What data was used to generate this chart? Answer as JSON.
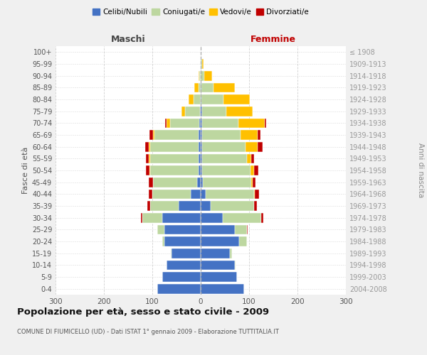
{
  "age_groups": [
    "0-4",
    "5-9",
    "10-14",
    "15-19",
    "20-24",
    "25-29",
    "30-34",
    "35-39",
    "40-44",
    "45-49",
    "50-54",
    "55-59",
    "60-64",
    "65-69",
    "70-74",
    "75-79",
    "80-84",
    "85-89",
    "90-94",
    "95-99",
    "100+"
  ],
  "birth_years": [
    "2004-2008",
    "1999-2003",
    "1994-1998",
    "1989-1993",
    "1984-1988",
    "1979-1983",
    "1974-1978",
    "1969-1973",
    "1964-1968",
    "1959-1963",
    "1954-1958",
    "1949-1953",
    "1944-1948",
    "1939-1943",
    "1934-1938",
    "1929-1933",
    "1924-1928",
    "1919-1923",
    "1914-1918",
    "1909-1913",
    "≤ 1908"
  ],
  "male_celibi": [
    90,
    80,
    70,
    60,
    75,
    75,
    80,
    45,
    20,
    8,
    5,
    5,
    5,
    5,
    3,
    2,
    0,
    0,
    0,
    0,
    0
  ],
  "male_coniugati": [
    0,
    0,
    0,
    2,
    5,
    15,
    40,
    60,
    80,
    90,
    100,
    100,
    100,
    90,
    60,
    30,
    15,
    5,
    3,
    0,
    0
  ],
  "male_vedovi": [
    0,
    0,
    0,
    0,
    0,
    0,
    0,
    0,
    0,
    1,
    1,
    2,
    2,
    3,
    8,
    8,
    10,
    8,
    2,
    0,
    0
  ],
  "male_divorziati": [
    0,
    0,
    0,
    0,
    0,
    0,
    3,
    5,
    7,
    8,
    7,
    6,
    8,
    8,
    2,
    0,
    0,
    0,
    0,
    0,
    0
  ],
  "female_nubili": [
    90,
    75,
    70,
    60,
    80,
    70,
    45,
    20,
    10,
    5,
    3,
    3,
    3,
    3,
    3,
    3,
    2,
    1,
    0,
    0,
    0
  ],
  "female_coniugate": [
    0,
    0,
    2,
    5,
    15,
    25,
    80,
    90,
    100,
    100,
    100,
    92,
    90,
    80,
    75,
    50,
    45,
    25,
    8,
    3,
    0
  ],
  "female_vedove": [
    0,
    0,
    0,
    0,
    0,
    0,
    0,
    1,
    2,
    3,
    8,
    10,
    25,
    35,
    55,
    55,
    55,
    45,
    15,
    3,
    0
  ],
  "female_divorziate": [
    0,
    0,
    0,
    0,
    0,
    2,
    5,
    5,
    8,
    5,
    8,
    6,
    10,
    5,
    3,
    0,
    0,
    0,
    0,
    0,
    0
  ],
  "color_celibi": "#4472c4",
  "color_coniugati": "#bdd7a0",
  "color_vedovi": "#ffc000",
  "color_divorziati": "#c00000",
  "title": "Popolazione per età, sesso e stato civile - 2009",
  "subtitle": "COMUNE DI FIUMICELLO (UD) - Dati ISTAT 1° gennaio 2009 - Elaborazione TUTTITALIA.IT",
  "label_maschi": "Maschi",
  "label_femmine": "Femmine",
  "label_fasce": "Fasce di età",
  "label_anni": "Anni di nascita",
  "legend_labels": [
    "Celibi/Nubili",
    "Coniugati/e",
    "Vedovi/e",
    "Divorziati/e"
  ],
  "xlim": 300,
  "bg_color": "#f0f0f0",
  "plot_bg": "#ffffff"
}
